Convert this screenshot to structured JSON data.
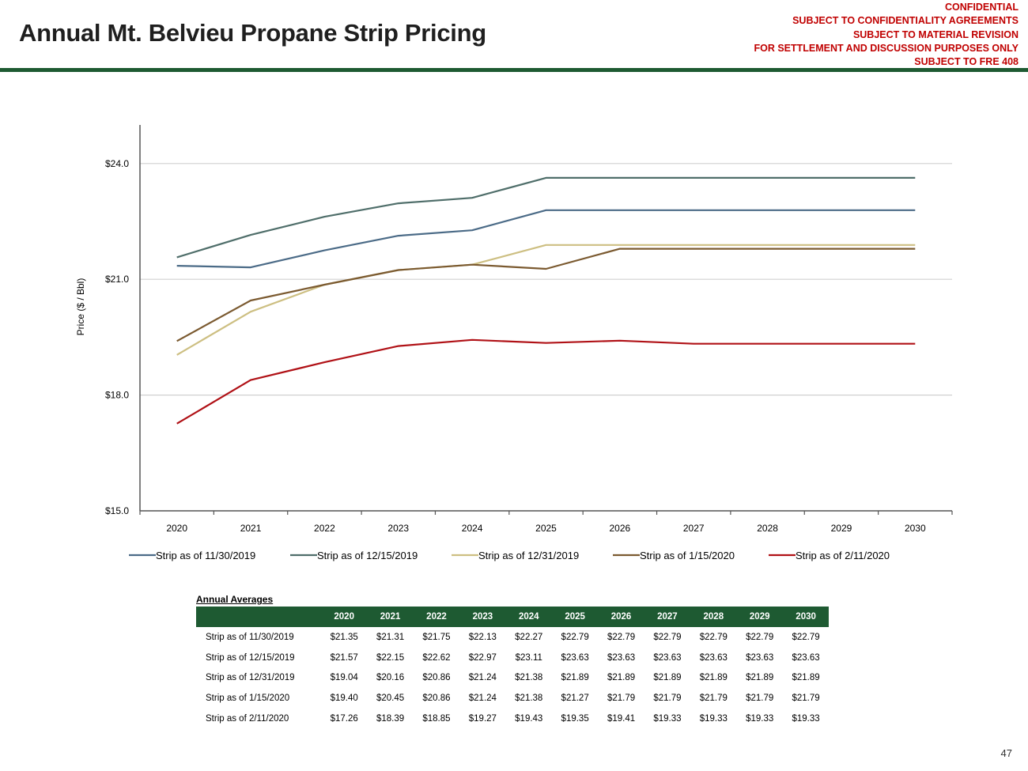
{
  "header": {
    "title": "Annual Mt. Belvieu Propane Strip Pricing",
    "confidential_lines": [
      "CONFIDENTIAL",
      "SUBJECT TO CONFIDENTIALITY AGREEMENTS",
      "SUBJECT TO MATERIAL REVISION",
      "FOR SETTLEMENT AND DISCUSSION PURPOSES ONLY",
      "SUBJECT TO FRE 408"
    ]
  },
  "colors": {
    "confidential": "#c00000",
    "rule": "#1e5a32",
    "table_header": "#1e5a32"
  },
  "chart_data": {
    "type": "line",
    "title": "",
    "ylabel": "Price ($ / Bbl)",
    "xlabel": "",
    "ylim": [
      15,
      25
    ],
    "yticks": [
      15,
      18,
      21,
      24
    ],
    "ytick_labels": [
      "$15.0",
      "$18.0",
      "$21.0",
      "$24.0"
    ],
    "grid": true,
    "legend_position": "bottom",
    "x": [
      "2020",
      "2021",
      "2022",
      "2023",
      "2024",
      "2025",
      "2026",
      "2027",
      "2028",
      "2029",
      "2030"
    ],
    "series": [
      {
        "name": "Strip as of 11/30/2019",
        "color": "#4b6b87",
        "values": [
          21.35,
          21.31,
          21.75,
          22.13,
          22.27,
          22.79,
          22.79,
          22.79,
          22.79,
          22.79,
          22.79
        ]
      },
      {
        "name": "Strip as of 12/15/2019",
        "color": "#4f6e6a",
        "values": [
          21.57,
          22.15,
          22.62,
          22.97,
          23.11,
          23.63,
          23.63,
          23.63,
          23.63,
          23.63,
          23.63
        ]
      },
      {
        "name": "Strip as of 12/31/2019",
        "color": "#cdbf82",
        "values": [
          19.04,
          20.16,
          20.86,
          21.24,
          21.38,
          21.89,
          21.89,
          21.89,
          21.89,
          21.89,
          21.89
        ]
      },
      {
        "name": "Strip as of 1/15/2020",
        "color": "#7b5a30",
        "values": [
          19.4,
          20.45,
          20.86,
          21.24,
          21.38,
          21.27,
          21.79,
          21.79,
          21.79,
          21.79,
          21.79
        ]
      },
      {
        "name": "Strip as of 2/11/2020",
        "color": "#b01116",
        "values": [
          17.26,
          18.39,
          18.85,
          19.27,
          19.43,
          19.35,
          19.41,
          19.33,
          19.33,
          19.33,
          19.33
        ]
      }
    ]
  },
  "annual_averages": {
    "title": "Annual Averages",
    "years": [
      "2020",
      "2021",
      "2022",
      "2023",
      "2024",
      "2025",
      "2026",
      "2027",
      "2028",
      "2029",
      "2030"
    ],
    "rows": [
      {
        "label": "Strip as of 11/30/2019",
        "values": [
          "$21.35",
          "$21.31",
          "$21.75",
          "$22.13",
          "$22.27",
          "$22.79",
          "$22.79",
          "$22.79",
          "$22.79",
          "$22.79",
          "$22.79"
        ]
      },
      {
        "label": "Strip as of 12/15/2019",
        "values": [
          "$21.57",
          "$22.15",
          "$22.62",
          "$22.97",
          "$23.11",
          "$23.63",
          "$23.63",
          "$23.63",
          "$23.63",
          "$23.63",
          "$23.63"
        ]
      },
      {
        "label": "Strip as of 12/31/2019",
        "values": [
          "$19.04",
          "$20.16",
          "$20.86",
          "$21.24",
          "$21.38",
          "$21.89",
          "$21.89",
          "$21.89",
          "$21.89",
          "$21.89",
          "$21.89"
        ]
      },
      {
        "label": "Strip as of 1/15/2020",
        "values": [
          "$19.40",
          "$20.45",
          "$20.86",
          "$21.24",
          "$21.38",
          "$21.27",
          "$21.79",
          "$21.79",
          "$21.79",
          "$21.79",
          "$21.79"
        ]
      },
      {
        "label": "Strip as of 2/11/2020",
        "values": [
          "$17.26",
          "$18.39",
          "$18.85",
          "$19.27",
          "$19.43",
          "$19.35",
          "$19.41",
          "$19.33",
          "$19.33",
          "$19.33",
          "$19.33"
        ]
      }
    ]
  },
  "footer": {
    "page_number": "47"
  }
}
